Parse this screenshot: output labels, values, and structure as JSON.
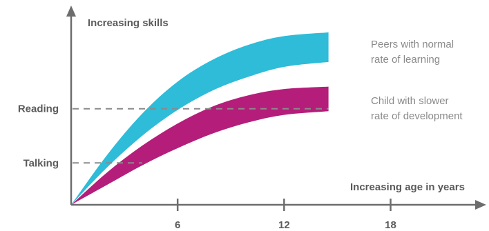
{
  "chart_data": {
    "type": "area",
    "xlabel": "Increasing age in years",
    "ylabel": "Increasing skills",
    "x_ticks": [
      6,
      12,
      18
    ],
    "xlim": [
      0,
      23
    ],
    "y_ticks": [
      {
        "label": "Reading",
        "value": 0.78
      },
      {
        "label": "Talking",
        "value": 0.34
      }
    ],
    "ylim": [
      0,
      1.4
    ],
    "series": [
      {
        "name": "Peers with normal rate of learning",
        "legend_lines": [
          "Peers with normal",
          "rate of learning"
        ],
        "color": "#2ebcd8",
        "x": [
          0,
          2,
          4,
          6,
          8,
          10,
          12,
          14.5
        ],
        "lower": [
          0,
          0.3,
          0.56,
          0.77,
          0.93,
          1.04,
          1.12,
          1.16
        ],
        "upper": [
          0,
          0.4,
          0.74,
          1.0,
          1.18,
          1.3,
          1.37,
          1.4
        ]
      },
      {
        "name": "Child with slower rate of development",
        "legend_lines": [
          "Child with slower",
          "rate of development"
        ],
        "color": "#b41e7a",
        "x": [
          0,
          2,
          4,
          6,
          8,
          10,
          12,
          14.5
        ],
        "lower": [
          0,
          0.16,
          0.32,
          0.46,
          0.58,
          0.67,
          0.73,
          0.76
        ],
        "upper": [
          0,
          0.26,
          0.48,
          0.66,
          0.8,
          0.89,
          0.94,
          0.96
        ]
      }
    ],
    "reference_lines": [
      {
        "y": 0.78,
        "x_from": 0,
        "x_to": 14.5
      },
      {
        "y": 0.34,
        "x_from": 0,
        "x_to": 4
      }
    ],
    "axis_color": "#6d6d6d",
    "dash_color": "#8a8a8a",
    "grid": false
  }
}
